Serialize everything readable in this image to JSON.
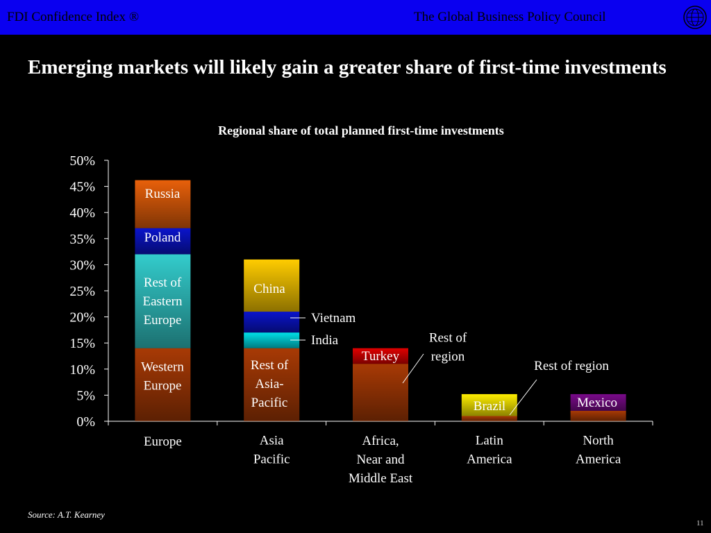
{
  "header": {
    "left_text": "FDI Confidence Index ®",
    "right_text": "The Global Business Policy Council",
    "logo_icon": "globe-seal-icon"
  },
  "slide": {
    "title": "Emerging markets will likely gain a greater share of first-time investments",
    "source": "Source: A.T. Kearney",
    "page_number": "11"
  },
  "chart_data": {
    "type": "bar",
    "stacked": true,
    "title": "Regional share of total planned first-time investments",
    "xlabel": "",
    "ylabel": "",
    "ylim": [
      0,
      50
    ],
    "yticks": [
      0,
      5,
      10,
      15,
      20,
      25,
      30,
      35,
      40,
      45,
      50
    ],
    "ytick_format": "%",
    "grid": false,
    "categories": [
      [
        "Europe"
      ],
      [
        "Asia",
        "Pacific"
      ],
      [
        "Africa,",
        "Near and",
        "Middle East"
      ],
      [
        "Latin",
        "America"
      ],
      [
        "North",
        "America"
      ]
    ],
    "stacks": [
      [
        {
          "label": [
            "Western",
            "Europe"
          ],
          "value": 14,
          "color": "#a83a05"
        },
        {
          "label": [
            "Rest of",
            "Eastern",
            "Europe"
          ],
          "value": 18,
          "color": "#33cccc"
        },
        {
          "label": [
            "Poland"
          ],
          "value": 5,
          "color": "#0a14cc"
        },
        {
          "label": [
            "Russia"
          ],
          "value": 9.2,
          "color": "#e8600a"
        }
      ],
      [
        {
          "label": [
            "Rest of",
            "Asia-",
            "Pacific"
          ],
          "value": 14,
          "color": "#a83a05"
        },
        {
          "label": [
            "India"
          ],
          "value": 3,
          "color": "#00e0e8"
        },
        {
          "label": [
            "Vietnam"
          ],
          "value": 4,
          "color": "#0a14cc"
        },
        {
          "label": [
            "China"
          ],
          "value": 10,
          "color": "#ffcc00"
        }
      ],
      [
        {
          "label": [
            "Rest of",
            "region"
          ],
          "value": 11,
          "color": "#a83a05"
        },
        {
          "label": [
            "Turkey"
          ],
          "value": 3,
          "color": "#e00000"
        }
      ],
      [
        {
          "label": [
            "Rest of",
            "region"
          ],
          "value": 1,
          "color": "#a83a05"
        },
        {
          "label": [
            "Brazil"
          ],
          "value": 4.2,
          "color": "#ffee00"
        }
      ],
      [
        {
          "label": [
            "Rest of region"
          ],
          "value": 2,
          "color": "#a83a05"
        },
        {
          "label": [
            "Mexico"
          ],
          "value": 3.2,
          "color": "#7a0a8a"
        }
      ]
    ]
  }
}
